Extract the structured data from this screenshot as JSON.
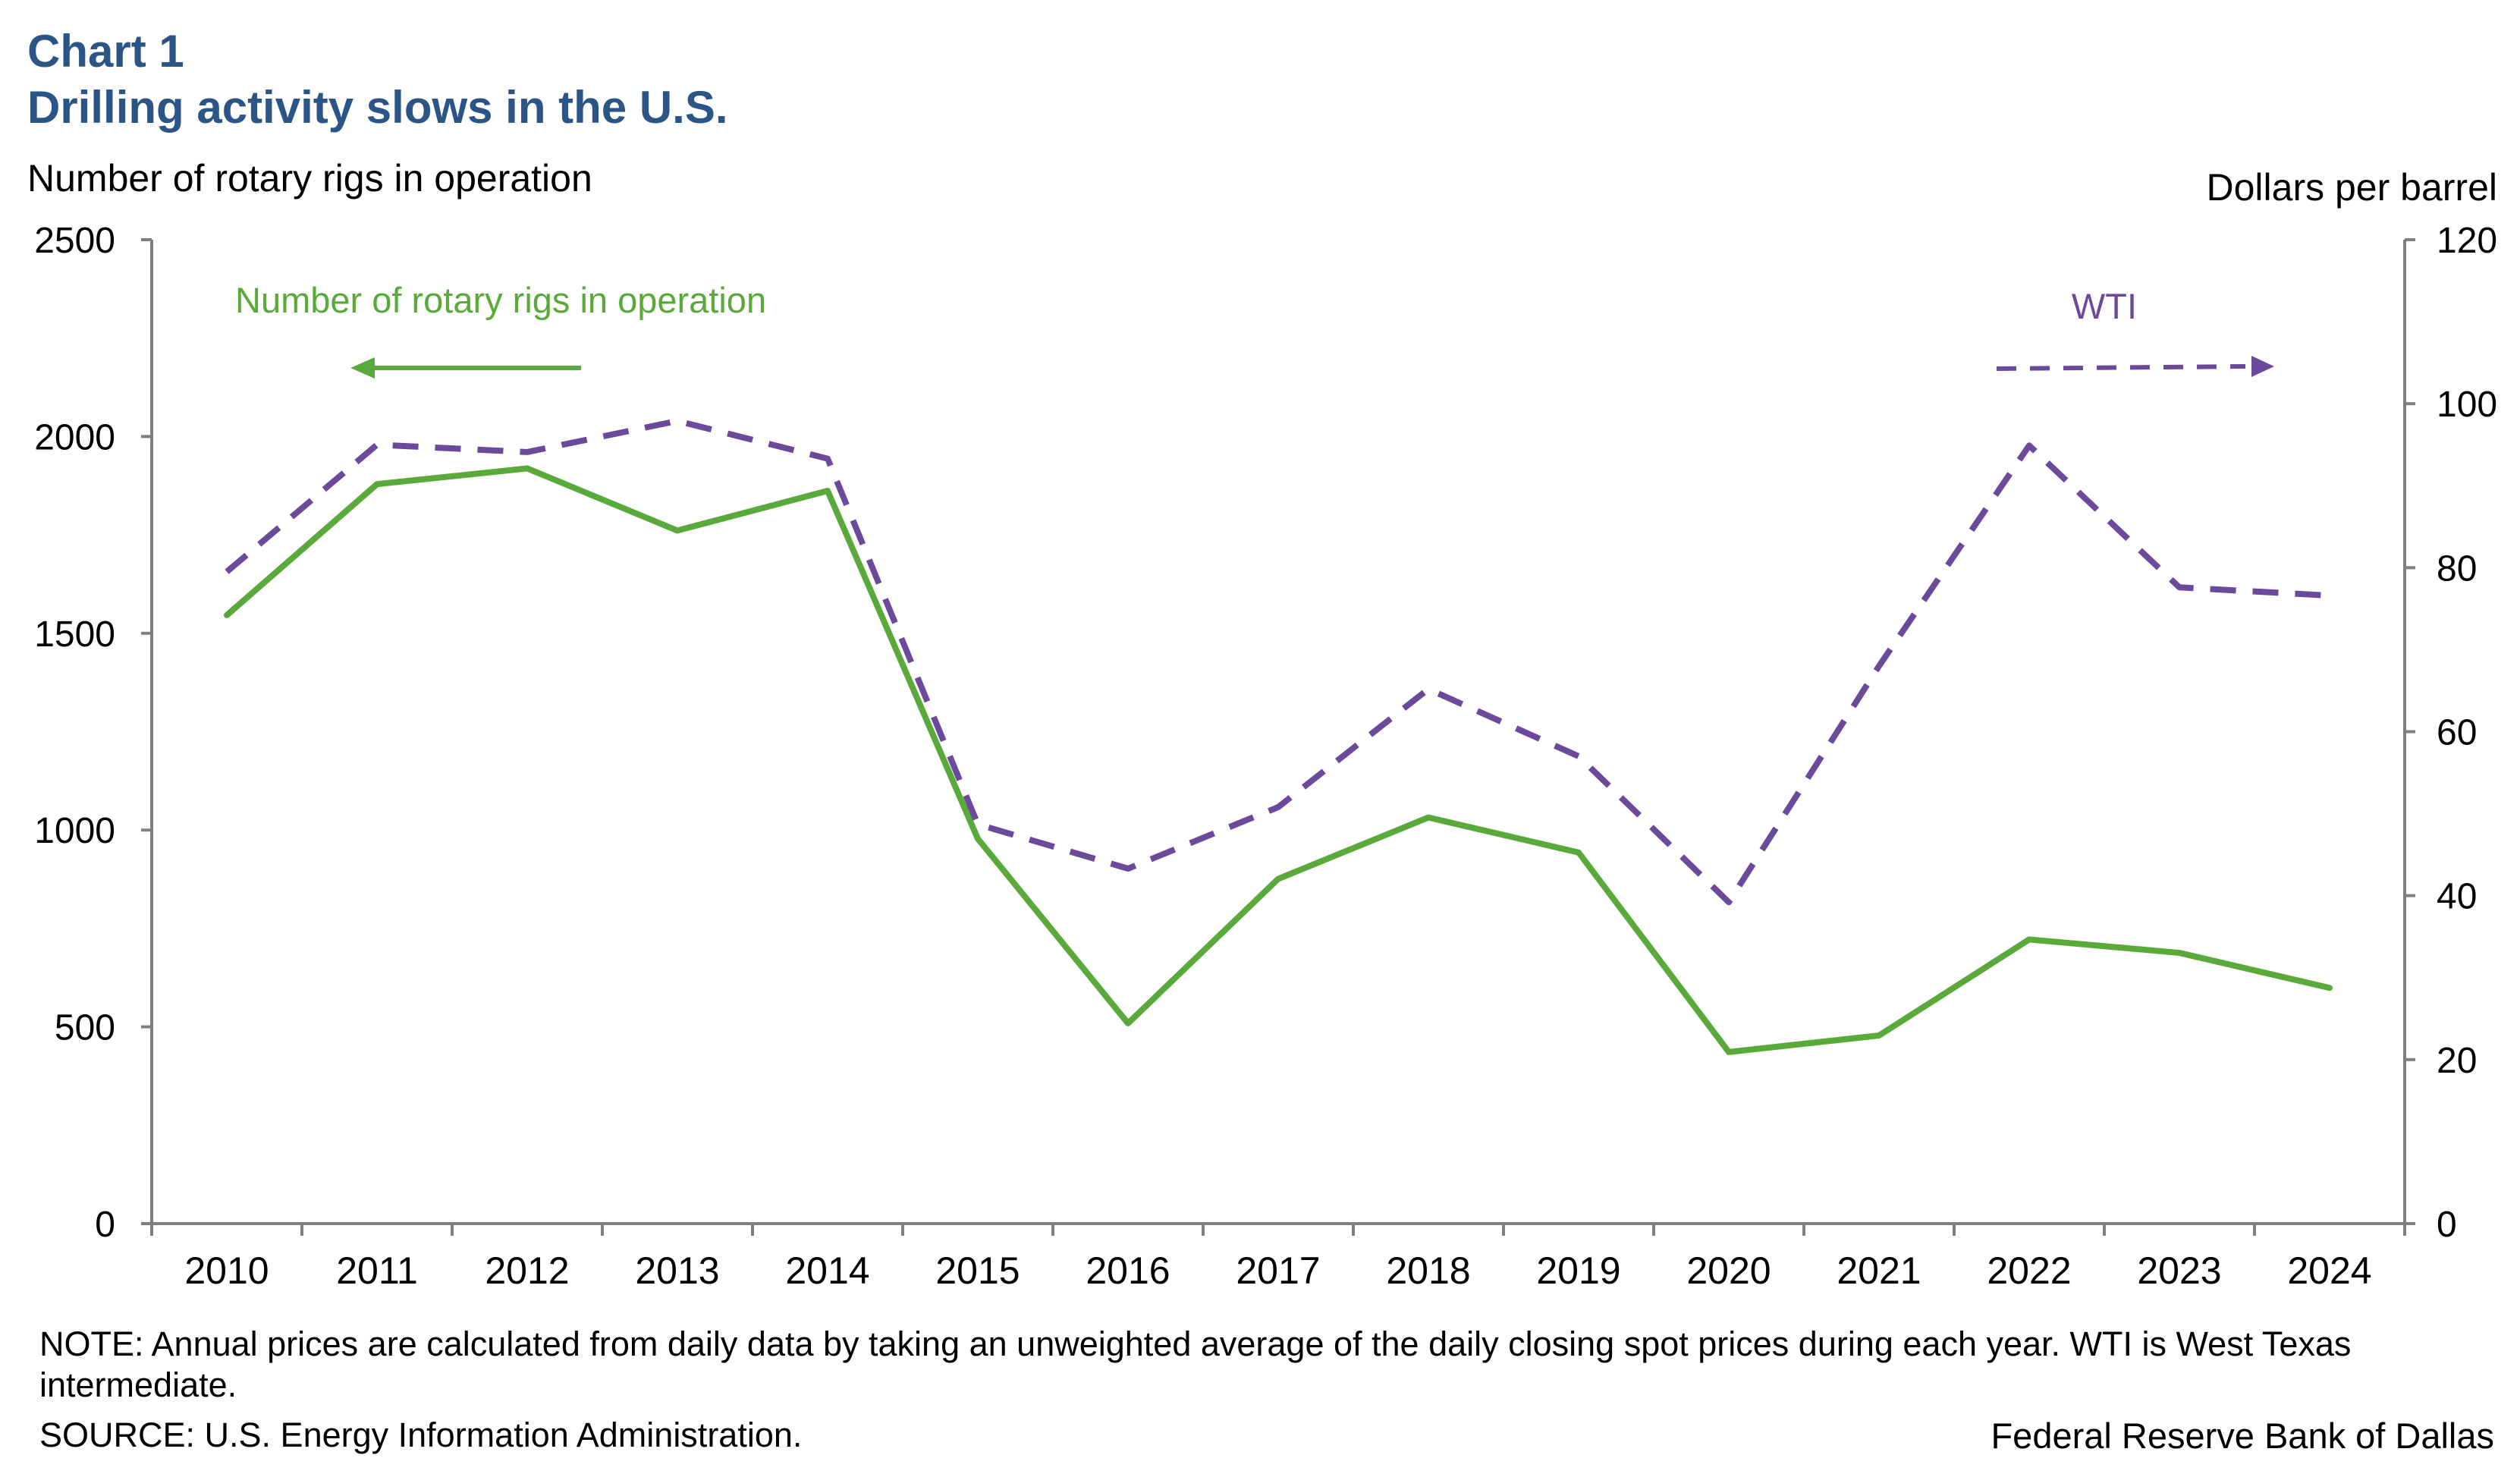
{
  "header": {
    "chart_number": "Chart 1",
    "title": "Drilling activity slows in the U.S."
  },
  "footer": {
    "note": "NOTE: Annual prices are calculated from daily data by taking an unweighted average of the daily closing spot prices during each year. WTI is West Texas intermediate.",
    "source": "SOURCE: U.S. Energy Information Administration.",
    "credit": "Federal Reserve Bank of Dallas"
  },
  "colors": {
    "title": "#2b5587",
    "rigs": "#5aa93b",
    "wti": "#6b4a9b",
    "axis": "#808080"
  },
  "chart_data": {
    "type": "line",
    "title": "Drilling activity slows in the U.S.",
    "categories": [
      "2010",
      "2011",
      "2012",
      "2013",
      "2014",
      "2015",
      "2016",
      "2017",
      "2018",
      "2019",
      "2020",
      "2021",
      "2022",
      "2023",
      "2024"
    ],
    "left_axis": {
      "label": "Number of rotary rigs in operation",
      "range": [
        0,
        2500
      ],
      "ticks": [
        0,
        500,
        1000,
        1500,
        2000,
        2500
      ]
    },
    "right_axis": {
      "label": "Dollars per barrel",
      "range": [
        0,
        120
      ],
      "ticks": [
        0,
        20,
        40,
        60,
        80,
        100,
        120
      ]
    },
    "series": [
      {
        "name": "Number of rotary rigs in operation",
        "axis": "left",
        "style": "solid",
        "annotation": "Number of rotary rigs in operation",
        "values": [
          1546,
          1879,
          1919,
          1761,
          1862,
          978,
          509,
          876,
          1032,
          943,
          436,
          478,
          722,
          688,
          599
        ]
      },
      {
        "name": "WTI",
        "axis": "right",
        "style": "dashed",
        "annotation": "WTI",
        "values": [
          79.5,
          95.0,
          94.1,
          97.9,
          93.3,
          48.7,
          43.3,
          50.8,
          65.2,
          57.0,
          39.2,
          68.0,
          94.9,
          77.6,
          76.6
        ]
      }
    ],
    "legend": "inline annotations with arrows pointing to respective axes"
  }
}
